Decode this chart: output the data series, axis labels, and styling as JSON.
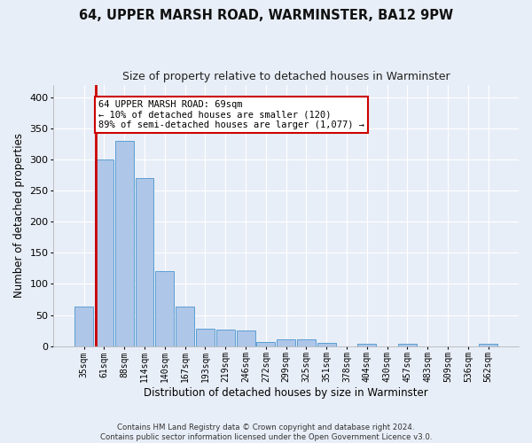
{
  "title1": "64, UPPER MARSH ROAD, WARMINSTER, BA12 9PW",
  "title2": "Size of property relative to detached houses in Warminster",
  "xlabel": "Distribution of detached houses by size in Warminster",
  "ylabel": "Number of detached properties",
  "footnote": "Contains HM Land Registry data © Crown copyright and database right 2024.\nContains public sector information licensed under the Open Government Licence v3.0.",
  "bar_labels": [
    "35sqm",
    "61sqm",
    "88sqm",
    "114sqm",
    "140sqm",
    "167sqm",
    "193sqm",
    "219sqm",
    "246sqm",
    "272sqm",
    "299sqm",
    "325sqm",
    "351sqm",
    "378sqm",
    "404sqm",
    "430sqm",
    "457sqm",
    "483sqm",
    "509sqm",
    "536sqm",
    "562sqm"
  ],
  "bar_values": [
    63,
    300,
    330,
    270,
    120,
    63,
    28,
    27,
    25,
    7,
    11,
    11,
    5,
    0,
    4,
    0,
    4,
    0,
    0,
    0,
    4
  ],
  "bar_color": "#aec6e8",
  "bar_edge_color": "#5a9fd4",
  "vline_color": "#cc0000",
  "annotation_text": "64 UPPER MARSH ROAD: 69sqm\n← 10% of detached houses are smaller (120)\n89% of semi-detached houses are larger (1,077) →",
  "annotation_box_color": "#ffffff",
  "annotation_box_edge": "#cc0000",
  "ylim": [
    0,
    420
  ],
  "yticks": [
    0,
    50,
    100,
    150,
    200,
    250,
    300,
    350,
    400
  ],
  "bg_color": "#e8eef7",
  "plot_bg_color": "#e8eef7",
  "grid_color": "#ffffff"
}
